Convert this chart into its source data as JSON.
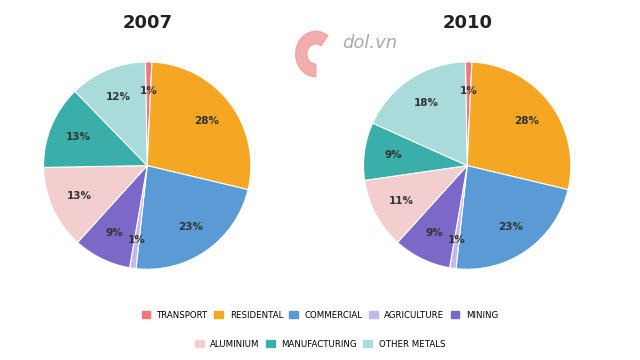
{
  "title_2007": "2007",
  "title_2010": "2010",
  "categories": [
    "TRANSPORT",
    "RESIDENTAL",
    "COMMERCIAL",
    "AGRICULTURE",
    "MINING",
    "ALUMINIUM",
    "MANUFACTURING",
    "OTHER METALS"
  ],
  "colors": [
    "#f07878",
    "#f5a623",
    "#5b9bd5",
    "#c5b9e8",
    "#7b68c8",
    "#f2cece",
    "#3aafa9",
    "#a8dbd9"
  ],
  "values_2007": [
    1,
    28,
    23,
    1,
    9,
    13,
    13,
    12
  ],
  "values_2010": [
    1,
    28,
    23,
    1,
    9,
    11,
    9,
    18
  ],
  "startangle": 91,
  "background_color": "#ffffff",
  "legend_order": [
    0,
    1,
    2,
    3,
    4,
    5,
    6,
    7
  ]
}
